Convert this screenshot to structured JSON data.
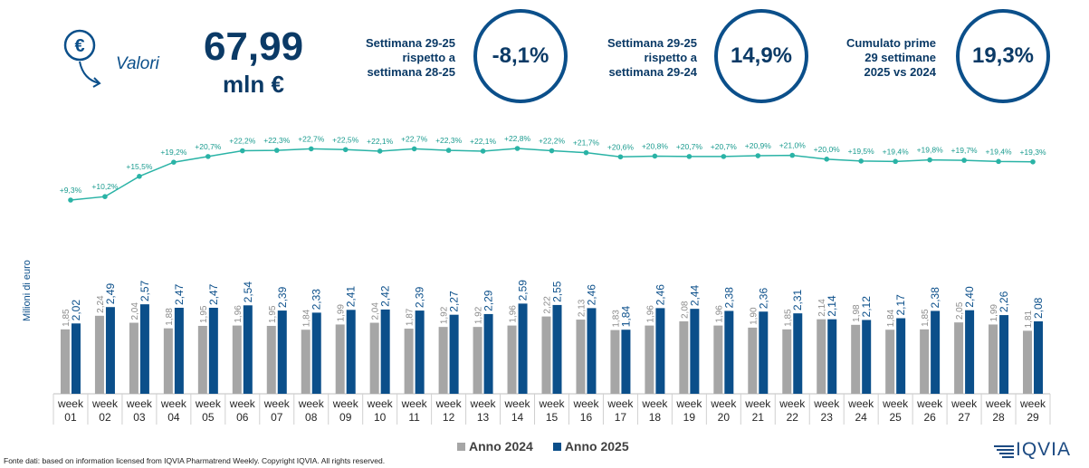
{
  "header": {
    "valori_label": "Valori",
    "total_value": "67,99",
    "total_unit": "mln €",
    "kpis": [
      {
        "line1": "Settimana 29-25",
        "line2": "rispetto a",
        "line3": "settimana 28-25",
        "value": "-8,1%"
      },
      {
        "line1": "Settimana 29-25",
        "line2": "rispetto a",
        "line3": "settimana 29-24",
        "value": "14,9%"
      },
      {
        "line1": "Cumulato prime",
        "line2": "29 settimane",
        "line3": "2025 vs 2024",
        "value": "19,3%"
      }
    ]
  },
  "colors": {
    "series_2024": "#a6a6a6",
    "series_2025": "#0b4f8a",
    "cumulative_line": "#2ab3a6",
    "text_primary": "#0b3a66"
  },
  "chart_data": {
    "type": "bar",
    "ylabel": "Milioni di euro",
    "categories": [
      "01",
      "02",
      "03",
      "04",
      "05",
      "06",
      "07",
      "08",
      "09",
      "10",
      "11",
      "12",
      "13",
      "14",
      "15",
      "16",
      "17",
      "18",
      "19",
      "20",
      "21",
      "22",
      "23",
      "24",
      "25",
      "26",
      "27",
      "28",
      "29"
    ],
    "category_prefix": "week",
    "series": [
      {
        "name": "Anno 2024",
        "values": [
          "1,85",
          "2,24",
          "2,04",
          "1,88",
          "1,95",
          "1,96",
          "1,95",
          "1,84",
          "1,99",
          "2,04",
          "1,87",
          "1,92",
          "1,92",
          "1,96",
          "2,22",
          "2,13",
          "1,83",
          "1,96",
          "2,08",
          "1,96",
          "1,90",
          "1,85",
          "2,14",
          "1,98",
          "1,84",
          "1,85",
          "2,05",
          "1,99",
          "1,81"
        ]
      },
      {
        "name": "Anno 2025",
        "values": [
          "2,02",
          "2,49",
          "2,57",
          "2,47",
          "2,47",
          "2,54",
          "2,39",
          "2,33",
          "2,41",
          "2,42",
          "2,39",
          "2,27",
          "2,29",
          "2,59",
          "2,55",
          "2,46",
          "1,84",
          "2,46",
          "2,44",
          "2,38",
          "2,36",
          "2,31",
          "2,14",
          "2,12",
          "2,17",
          "2,38",
          "2,40",
          "2,26",
          "2,08"
        ]
      }
    ],
    "cumulative_growth": [
      "+9,3%",
      "+10,2%",
      "+15,5%",
      "+19,2%",
      "+20,7%",
      "+22,2%",
      "+22,3%",
      "+22,7%",
      "+22,5%",
      "+22,1%",
      "+22,7%",
      "+22,3%",
      "+22,1%",
      "+22,8%",
      "+22,2%",
      "+21,7%",
      "+20,6%",
      "+20,8%",
      "+20,7%",
      "+20,7%",
      "+20,9%",
      "+21,0%",
      "+20,0%",
      "+19,5%",
      "+19,4%",
      "+19,8%",
      "+19,7%",
      "+19,4%",
      "+19,3%"
    ],
    "ylim": [
      0,
      2.8
    ],
    "legend": "bottom-center",
    "grid": false
  },
  "footer": {
    "source": "Fonte dati: based on information licensed from IQVIA Pharmatrend Weekly. Copyright IQVIA. All rights reserved.",
    "logo_text": "IQVIA"
  }
}
